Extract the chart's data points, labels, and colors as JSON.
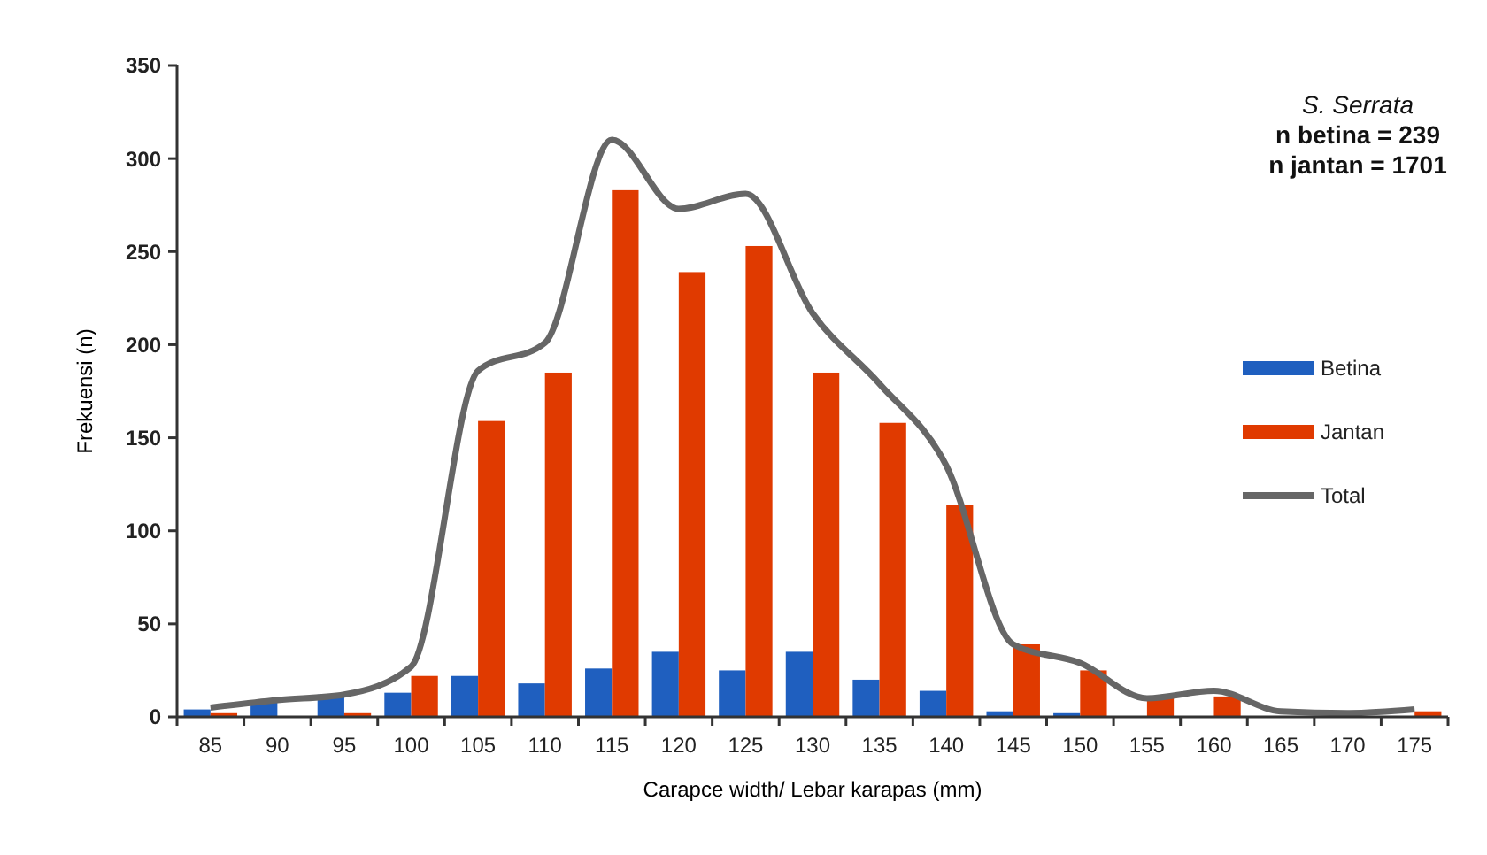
{
  "chart_data": {
    "type": "bar",
    "xlabel": "Carapce width/ Lebar karapas (mm)",
    "ylabel": "Frekuensi (n)",
    "categories": [
      "85",
      "90",
      "95",
      "100",
      "105",
      "110",
      "115",
      "120",
      "125",
      "130",
      "135",
      "140",
      "145",
      "150",
      "155",
      "160",
      "165",
      "170",
      "175"
    ],
    "series": [
      {
        "name": "Betina",
        "color": "#1f5fbf",
        "values": [
          4,
          8,
          12,
          13,
          22,
          18,
          26,
          35,
          25,
          35,
          20,
          14,
          3,
          2,
          0,
          null,
          0,
          0,
          0
        ]
      },
      {
        "name": "Jantan",
        "color": "#e03a00",
        "values": [
          2,
          0,
          2,
          22,
          159,
          185,
          283,
          239,
          253,
          185,
          158,
          114,
          39,
          25,
          10,
          11,
          0,
          0,
          3
        ]
      },
      {
        "name": "Total",
        "type": "line",
        "color": "#666666",
        "values": [
          5,
          9,
          12,
          27,
          186,
          201,
          310,
          273,
          281,
          217,
          179,
          135,
          39,
          29,
          10,
          14,
          3,
          2,
          4
        ]
      }
    ],
    "ylim": [
      0,
      350
    ],
    "yticks": [
      0,
      50,
      100,
      150,
      200,
      250,
      300,
      350
    ],
    "grid": false,
    "legend": "right",
    "marker": "none",
    "annotations": [
      "S. Serrata",
      "n betina = 239",
      "n jantan = 1701"
    ]
  }
}
